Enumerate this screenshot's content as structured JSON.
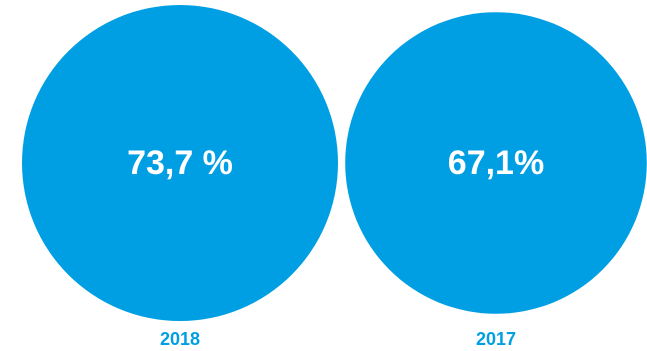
{
  "chart_data": {
    "type": "bubble",
    "title": "",
    "unit": "%",
    "categories": [
      "2018",
      "2017"
    ],
    "values": [
      73.7,
      67.1
    ],
    "value_labels": [
      "73,7 %",
      "67,1%"
    ],
    "color": "#009fe3",
    "label_color": "#009fe3"
  }
}
